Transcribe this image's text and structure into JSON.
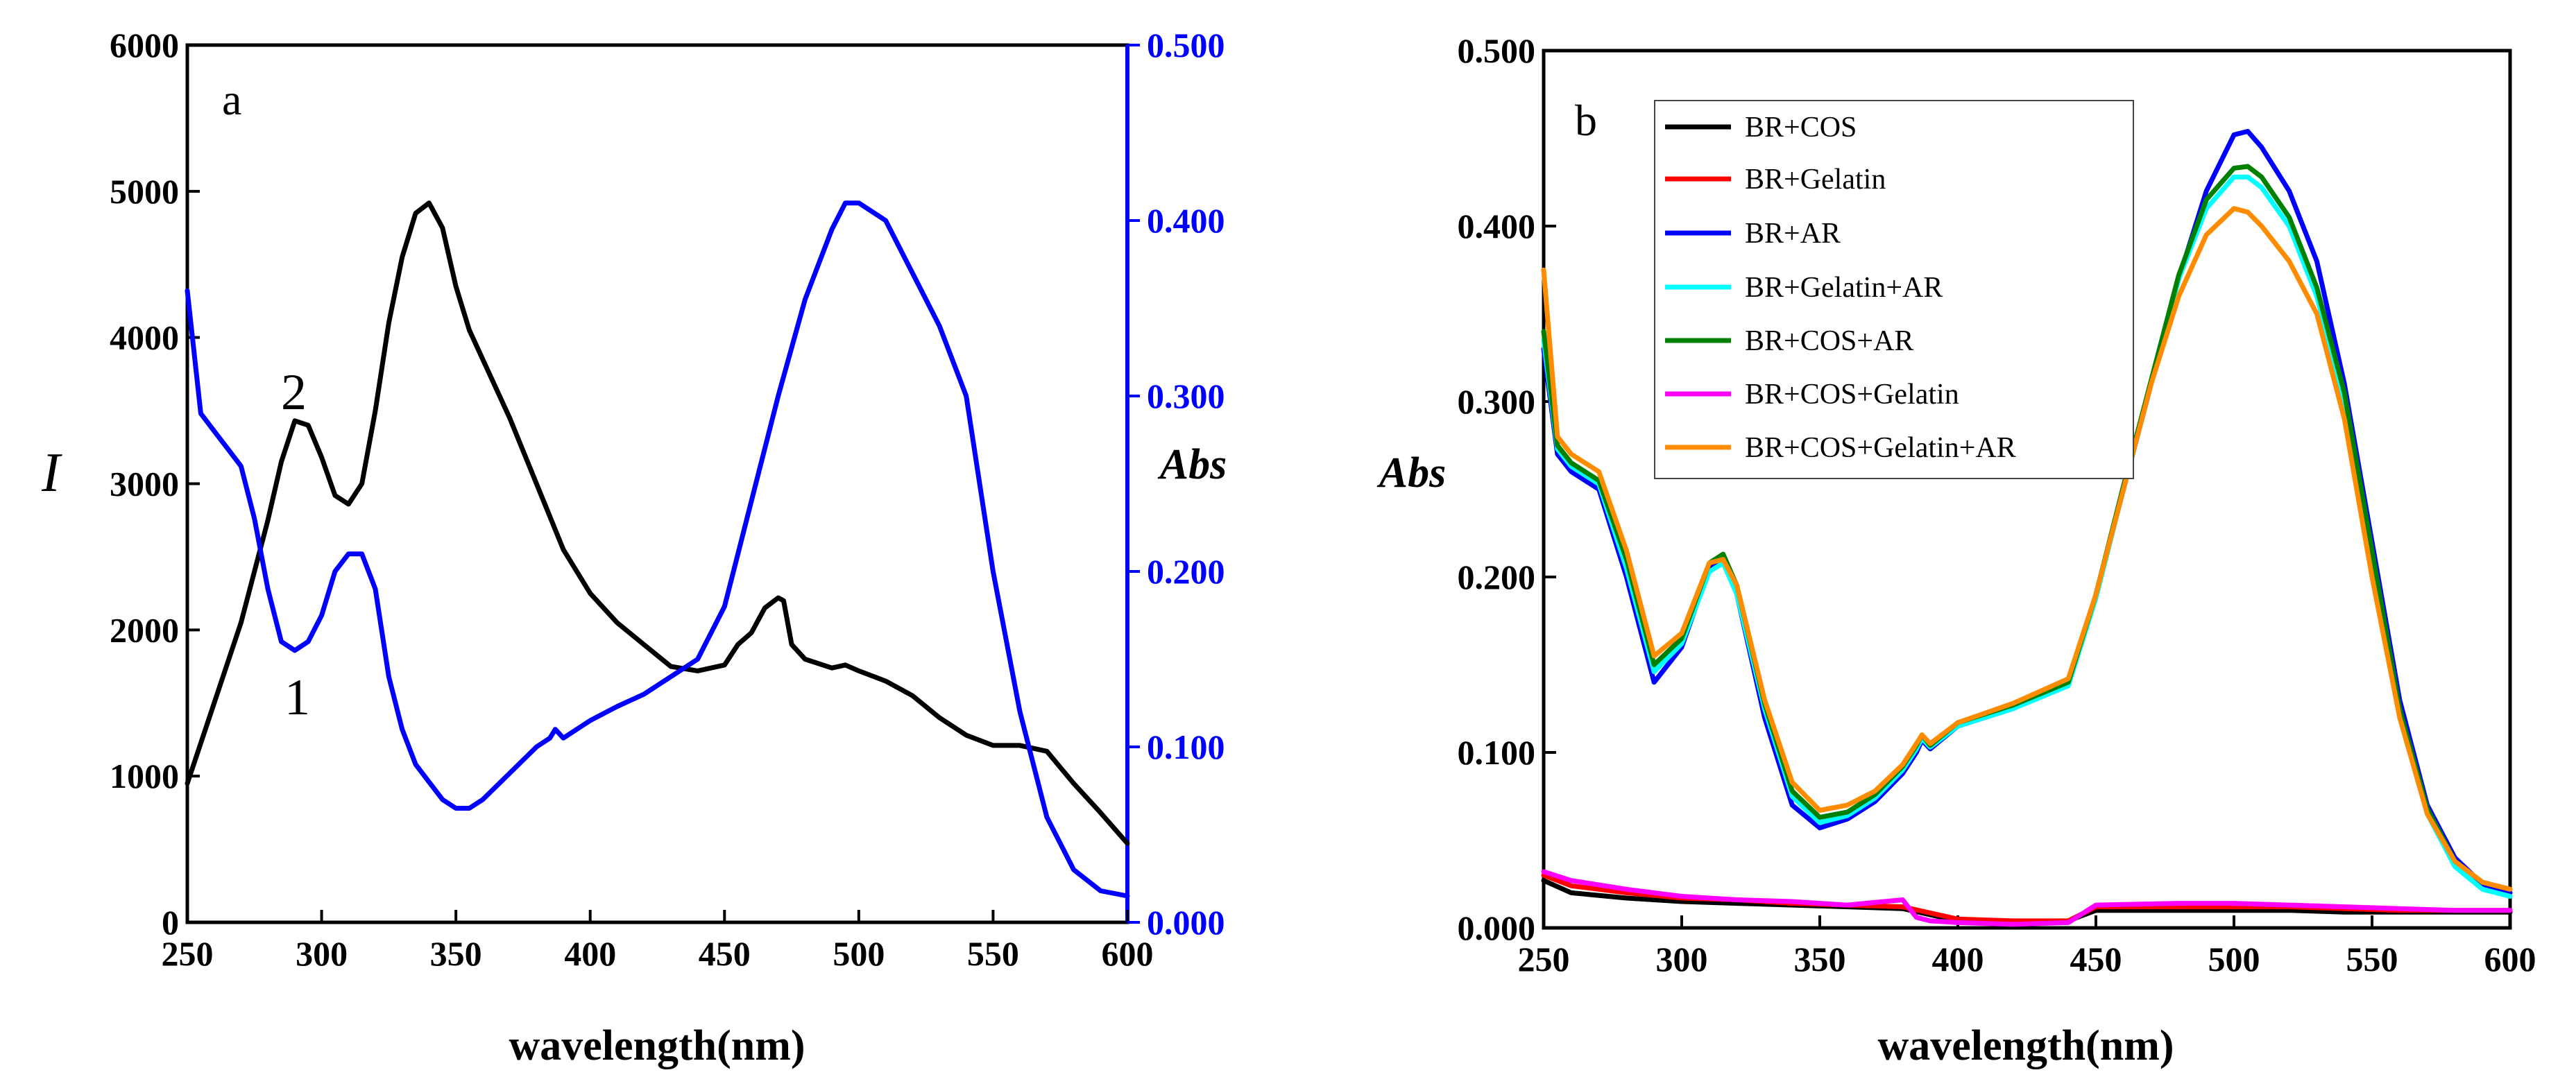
{
  "figure": {
    "colors": {
      "axis": "#000000",
      "abs_axis": "#0000ff"
    }
  },
  "chart_data": [
    {
      "type": "line",
      "panel_label": "a",
      "xlabel": "wavelength(nm)",
      "ylabel": "I",
      "y2label": "Abs",
      "xlim": [
        250,
        600
      ],
      "ylim": [
        0,
        6000
      ],
      "y2lim": [
        0,
        0.5
      ],
      "xticks": [
        "250",
        "300",
        "350",
        "400",
        "450",
        "500",
        "550",
        "600"
      ],
      "yticks": [
        "0",
        "1000",
        "2000",
        "3000",
        "4000",
        "5000",
        "6000"
      ],
      "y2ticks": [
        "0.000",
        "0.100",
        "0.200",
        "0.300",
        "0.400",
        "0.500"
      ],
      "series": [
        {
          "name": "2",
          "axis": "left",
          "color": "#000000",
          "x": [
            250,
            260,
            270,
            280,
            285,
            290,
            295,
            300,
            305,
            310,
            315,
            320,
            325,
            330,
            335,
            340,
            345,
            350,
            355,
            360,
            370,
            380,
            390,
            400,
            410,
            420,
            430,
            440,
            450,
            455,
            460,
            465,
            470,
            472,
            475,
            480,
            490,
            495,
            500,
            510,
            520,
            530,
            540,
            550,
            560,
            570,
            580,
            590,
            600
          ],
          "values": [
            950,
            1500,
            2050,
            2750,
            3150,
            3430,
            3400,
            3180,
            2920,
            2860,
            3000,
            3500,
            4100,
            4550,
            4850,
            4920,
            4750,
            4350,
            4050,
            3850,
            3450,
            3000,
            2550,
            2250,
            2050,
            1900,
            1750,
            1720,
            1760,
            1900,
            1980,
            2150,
            2220,
            2200,
            1900,
            1800,
            1740,
            1760,
            1720,
            1650,
            1550,
            1400,
            1280,
            1210,
            1210,
            1170,
            950,
            750,
            540
          ]
        },
        {
          "name": "1",
          "axis": "right",
          "color": "#0000ff",
          "x": [
            250,
            255,
            260,
            265,
            270,
            275,
            280,
            285,
            290,
            295,
            300,
            305,
            310,
            315,
            320,
            325,
            330,
            335,
            340,
            345,
            350,
            355,
            360,
            370,
            380,
            385,
            387,
            390,
            400,
            410,
            420,
            430,
            440,
            450,
            460,
            470,
            480,
            490,
            495,
            500,
            505,
            510,
            520,
            530,
            540,
            550,
            560,
            570,
            580,
            590,
            600
          ],
          "values": [
            0.36,
            0.29,
            0.28,
            0.27,
            0.26,
            0.23,
            0.19,
            0.16,
            0.155,
            0.16,
            0.175,
            0.2,
            0.21,
            0.21,
            0.19,
            0.14,
            0.11,
            0.09,
            0.08,
            0.07,
            0.065,
            0.065,
            0.07,
            0.085,
            0.1,
            0.105,
            0.11,
            0.105,
            0.115,
            0.123,
            0.13,
            0.14,
            0.15,
            0.18,
            0.24,
            0.3,
            0.355,
            0.395,
            0.41,
            0.41,
            0.405,
            0.4,
            0.37,
            0.34,
            0.3,
            0.2,
            0.12,
            0.06,
            0.03,
            0.018,
            0.015
          ]
        }
      ]
    },
    {
      "type": "line",
      "panel_label": "b",
      "xlabel": "wavelength(nm)",
      "ylabel": "Abs",
      "xlim": [
        250,
        600
      ],
      "ylim": [
        0,
        0.5
      ],
      "xticks": [
        "250",
        "300",
        "350",
        "400",
        "450",
        "500",
        "550",
        "600"
      ],
      "yticks": [
        "0.000",
        "0.100",
        "0.200",
        "0.300",
        "0.400",
        "0.500"
      ],
      "legend_position": "top-left",
      "series": [
        {
          "name": "BR+COS",
          "color": "#000000",
          "x": [
            250,
            260,
            280,
            300,
            320,
            340,
            360,
            380,
            400,
            420,
            440,
            450,
            480,
            500,
            520,
            540,
            560,
            580,
            600
          ],
          "values": [
            0.027,
            0.02,
            0.017,
            0.015,
            0.014,
            0.013,
            0.012,
            0.011,
            0.004,
            0.003,
            0.004,
            0.01,
            0.01,
            0.01,
            0.01,
            0.009,
            0.009,
            0.009,
            0.009
          ]
        },
        {
          "name": "BR+Gelatin",
          "color": "#ff0000",
          "x": [
            250,
            260,
            280,
            300,
            320,
            340,
            360,
            380,
            400,
            420,
            440,
            450,
            480,
            500,
            520,
            540,
            560,
            580,
            600
          ],
          "values": [
            0.03,
            0.024,
            0.02,
            0.017,
            0.016,
            0.014,
            0.013,
            0.012,
            0.005,
            0.004,
            0.004,
            0.012,
            0.012,
            0.012,
            0.012,
            0.011,
            0.01,
            0.01,
            0.01
          ]
        },
        {
          "name": "BR+AR",
          "color": "#0000ff",
          "x": [
            250,
            255,
            260,
            270,
            280,
            290,
            300,
            310,
            315,
            320,
            330,
            340,
            350,
            360,
            370,
            380,
            385,
            387,
            390,
            400,
            420,
            440,
            450,
            460,
            470,
            480,
            490,
            500,
            505,
            510,
            520,
            530,
            540,
            550,
            560,
            570,
            580,
            590,
            600
          ],
          "values": [
            0.33,
            0.27,
            0.26,
            0.25,
            0.2,
            0.14,
            0.16,
            0.205,
            0.21,
            0.19,
            0.12,
            0.07,
            0.057,
            0.062,
            0.072,
            0.088,
            0.1,
            0.107,
            0.102,
            0.115,
            0.125,
            0.14,
            0.19,
            0.25,
            0.31,
            0.37,
            0.42,
            0.452,
            0.454,
            0.445,
            0.42,
            0.38,
            0.31,
            0.22,
            0.13,
            0.07,
            0.04,
            0.025,
            0.02
          ]
        },
        {
          "name": "BR+Gelatin+AR",
          "color": "#00ffff",
          "x": [
            250,
            255,
            260,
            270,
            280,
            290,
            300,
            310,
            315,
            320,
            330,
            340,
            350,
            360,
            370,
            380,
            385,
            387,
            390,
            400,
            420,
            440,
            450,
            460,
            470,
            480,
            490,
            500,
            505,
            510,
            520,
            530,
            540,
            550,
            560,
            570,
            580,
            590,
            600
          ],
          "values": [
            0.335,
            0.273,
            0.263,
            0.253,
            0.205,
            0.146,
            0.162,
            0.203,
            0.208,
            0.19,
            0.125,
            0.075,
            0.06,
            0.064,
            0.074,
            0.09,
            0.102,
            0.108,
            0.103,
            0.115,
            0.125,
            0.138,
            0.188,
            0.25,
            0.31,
            0.37,
            0.41,
            0.428,
            0.428,
            0.422,
            0.4,
            0.36,
            0.3,
            0.21,
            0.12,
            0.065,
            0.035,
            0.022,
            0.018
          ]
        },
        {
          "name": "BR+COS+AR",
          "color": "#008000",
          "x": [
            250,
            255,
            260,
            270,
            280,
            290,
            300,
            310,
            315,
            320,
            330,
            340,
            350,
            360,
            370,
            380,
            385,
            387,
            390,
            400,
            420,
            440,
            450,
            460,
            470,
            480,
            490,
            500,
            505,
            510,
            520,
            530,
            540,
            550,
            560,
            570,
            580,
            590,
            600
          ],
          "values": [
            0.34,
            0.275,
            0.265,
            0.255,
            0.21,
            0.15,
            0.165,
            0.208,
            0.213,
            0.195,
            0.128,
            0.078,
            0.063,
            0.066,
            0.076,
            0.092,
            0.104,
            0.11,
            0.104,
            0.117,
            0.127,
            0.14,
            0.19,
            0.252,
            0.312,
            0.372,
            0.415,
            0.433,
            0.434,
            0.428,
            0.405,
            0.365,
            0.305,
            0.215,
            0.125,
            0.068,
            0.038,
            0.026,
            0.022
          ]
        },
        {
          "name": "BR+COS+Gelatin",
          "color": "#ff00ff",
          "x": [
            250,
            260,
            280,
            300,
            320,
            340,
            360,
            380,
            385,
            390,
            400,
            420,
            440,
            450,
            480,
            500,
            520,
            540,
            560,
            580,
            600
          ],
          "values": [
            0.032,
            0.027,
            0.022,
            0.018,
            0.016,
            0.015,
            0.013,
            0.016,
            0.006,
            0.004,
            0.003,
            0.002,
            0.003,
            0.013,
            0.014,
            0.014,
            0.013,
            0.012,
            0.011,
            0.01,
            0.01
          ]
        },
        {
          "name": "BR+COS+Gelatin+AR",
          "color": "#ff8c00",
          "x": [
            250,
            255,
            260,
            270,
            280,
            290,
            300,
            310,
            315,
            320,
            330,
            340,
            350,
            360,
            370,
            380,
            385,
            387,
            390,
            400,
            420,
            440,
            450,
            460,
            470,
            480,
            490,
            500,
            505,
            510,
            520,
            530,
            540,
            550,
            560,
            570,
            580,
            590,
            600
          ],
          "values": [
            0.375,
            0.28,
            0.27,
            0.26,
            0.215,
            0.155,
            0.168,
            0.208,
            0.21,
            0.195,
            0.13,
            0.083,
            0.067,
            0.07,
            0.078,
            0.093,
            0.105,
            0.11,
            0.105,
            0.117,
            0.128,
            0.142,
            0.19,
            0.25,
            0.31,
            0.36,
            0.395,
            0.41,
            0.408,
            0.4,
            0.38,
            0.35,
            0.29,
            0.2,
            0.12,
            0.065,
            0.038,
            0.026,
            0.022
          ]
        }
      ]
    }
  ]
}
